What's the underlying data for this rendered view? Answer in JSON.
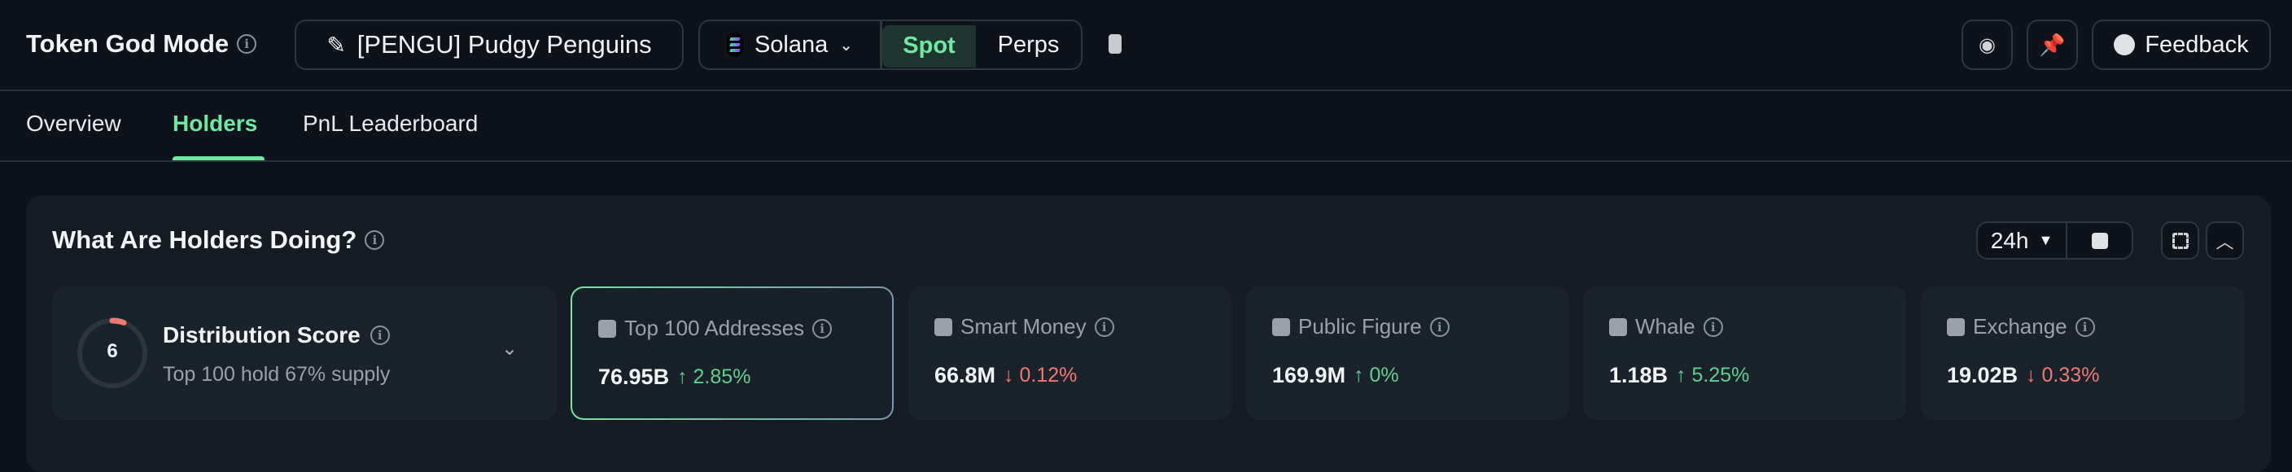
{
  "header": {
    "title": "Token God Mode",
    "token": "[PENGU] Pudgy Penguins",
    "chain": "Solana",
    "market_modes": [
      "Spot",
      "Perps"
    ],
    "active_mode": "Spot",
    "feedback_label": "Feedback"
  },
  "tabs": [
    {
      "label": "Overview"
    },
    {
      "label": "Holders",
      "active": true
    },
    {
      "label": "PnL Leaderboard"
    }
  ],
  "panel": {
    "title": "What Are Holders Doing?",
    "timeframe": "24h",
    "distribution": {
      "score": "6",
      "label": "Distribution Score",
      "subtitle": "Top 100 hold 67% supply"
    },
    "cards": [
      {
        "label": "Top 100 Addresses",
        "value": "76.95B",
        "change": "2.85%",
        "direction": "up",
        "icon": "safe-icon",
        "selected": true
      },
      {
        "label": "Smart Money",
        "value": "66.8M",
        "change": "0.12%",
        "direction": "down",
        "icon": "sunglasses-icon"
      },
      {
        "label": "Public Figure",
        "value": "169.9M",
        "change": "0%",
        "direction": "up",
        "icon": "podium-icon"
      },
      {
        "label": "Whale",
        "value": "1.18B",
        "change": "5.25%",
        "direction": "up",
        "icon": "whale-icon"
      },
      {
        "label": "Exchange",
        "value": "19.02B",
        "change": "0.33%",
        "direction": "down",
        "icon": "bank-icon"
      }
    ]
  },
  "colors": {
    "accent": "#6ee9a0",
    "up": "#5fd08e",
    "down": "#f07a72",
    "background": "#0e121a",
    "panel": "#151c24"
  }
}
